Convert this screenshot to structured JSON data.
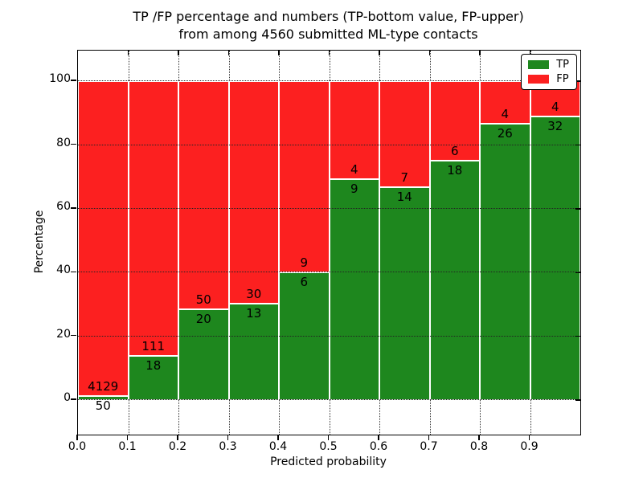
{
  "chart_data": {
    "type": "bar",
    "stacked": true,
    "title_line1": "TP /FP percentage and numbers (TP-bottom value, FP-upper)",
    "title_line2": "from among 4560 submitted ML-type contacts",
    "xlabel": "Predicted probability",
    "ylabel": "Percentage",
    "x_ticks": [
      "0.0",
      "0.1",
      "0.2",
      "0.3",
      "0.4",
      "0.5",
      "0.6",
      "0.7",
      "0.8",
      "0.9"
    ],
    "y_ticks": [
      0,
      20,
      40,
      60,
      80,
      100
    ],
    "xlim": [
      0.0,
      1.0
    ],
    "ylim": [
      -10.8,
      109.6
    ],
    "bin_width": 0.1,
    "categories": [
      "0.0-0.1",
      "0.1-0.2",
      "0.2-0.3",
      "0.3-0.4",
      "0.4-0.5",
      "0.5-0.6",
      "0.6-0.7",
      "0.7-0.8",
      "0.8-0.9",
      "0.9-1.0"
    ],
    "series": [
      {
        "name": "TP",
        "color": "#1e871e",
        "counts": [
          50,
          18,
          20,
          13,
          6,
          9,
          14,
          18,
          26,
          32
        ]
      },
      {
        "name": "FP",
        "color": "#fc2020",
        "counts": [
          4129,
          111,
          50,
          30,
          9,
          4,
          7,
          6,
          4,
          4
        ]
      }
    ],
    "tp_percent": [
      1.2,
      14.0,
      28.6,
      30.2,
      40.0,
      69.2,
      66.7,
      75.0,
      86.7,
      88.9
    ],
    "bar_total_percent": 100,
    "total_contacts": "4560",
    "grid": "dotted",
    "legend_position": "upper right"
  }
}
